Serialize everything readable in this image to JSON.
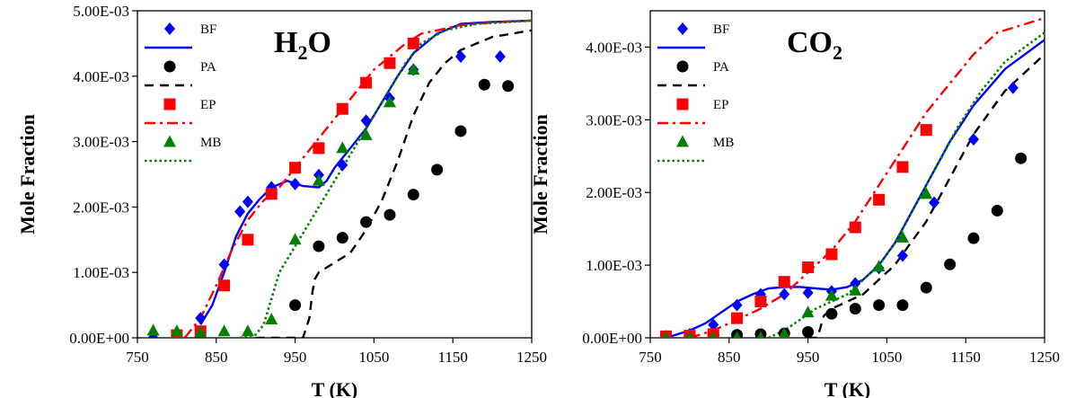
{
  "chart_data": [
    {
      "type": "scatter",
      "species_label": {
        "main": "H",
        "sub": "2",
        "tail": "O"
      },
      "xlabel": "T (K)",
      "ylabel": "Mole Fraction",
      "xlim": [
        750,
        1250
      ],
      "ylim": [
        0,
        0.005
      ],
      "xticks": [
        "750",
        "850",
        "950",
        "1050",
        "1150",
        "1250"
      ],
      "yticks": [
        "0.00E+00",
        "1.00E-03",
        "2.00E-03",
        "3.00E-03",
        "4.00E-03",
        "5.00E-03"
      ],
      "legend_position": "top-left",
      "legend": [
        "BF",
        "PA",
        "EP",
        "MB"
      ],
      "series": [
        {
          "name": "BF",
          "kind": "points",
          "marker": "diamond",
          "color": "#0000ff",
          "x": [
            770,
            800,
            830,
            860,
            880,
            890,
            920,
            950,
            980,
            1010,
            1040,
            1070,
            1100,
            1160,
            1210
          ],
          "y": [
            0.0,
            5e-05,
            0.0003,
            0.00112,
            0.00193,
            0.00208,
            0.0023,
            0.00235,
            0.00249,
            0.00264,
            0.00332,
            0.00366,
            0.0041,
            0.0043,
            0.0043
          ]
        },
        {
          "name": "BF",
          "kind": "line",
          "style": "solid",
          "color": "#0000ff",
          "x": [
            830,
            845,
            860,
            875,
            890,
            905,
            920,
            940,
            960,
            980,
            990,
            1000,
            1020,
            1040,
            1060,
            1080,
            1100,
            1130,
            1160,
            1200,
            1250
          ],
          "y": [
            0.0002,
            0.0005,
            0.001,
            0.00155,
            0.0019,
            0.00212,
            0.0023,
            0.0024,
            0.00232,
            0.0023,
            0.0024,
            0.0026,
            0.0029,
            0.0032,
            0.0036,
            0.004,
            0.00435,
            0.00465,
            0.0048,
            0.00483,
            0.00485
          ]
        },
        {
          "name": "PA",
          "kind": "points",
          "marker": "circle",
          "color": "#000000",
          "x": [
            950,
            980,
            1010,
            1040,
            1070,
            1100,
            1130,
            1160,
            1190,
            1220
          ],
          "y": [
            0.0005,
            0.0014,
            0.00153,
            0.00177,
            0.00188,
            0.00219,
            0.00257,
            0.00316,
            0.00387,
            0.00385
          ]
        },
        {
          "name": "PA",
          "kind": "line",
          "style": "dashed",
          "color": "#000000",
          "x": [
            900,
            960,
            968,
            972,
            975,
            980,
            1000,
            1020,
            1040,
            1060,
            1080,
            1100,
            1120,
            1140,
            1160,
            1200,
            1250
          ],
          "y": [
            0.0,
            0.0,
            0.0003,
            0.0007,
            0.0009,
            0.001,
            0.00115,
            0.0013,
            0.00165,
            0.0021,
            0.0027,
            0.0034,
            0.0039,
            0.0042,
            0.0044,
            0.0046,
            0.0047
          ]
        },
        {
          "name": "EP",
          "kind": "points",
          "marker": "square",
          "color": "#ff0000",
          "x": [
            800,
            830,
            860,
            890,
            920,
            950,
            980,
            1010,
            1040,
            1070,
            1100
          ],
          "y": [
            4e-05,
            0.0001,
            0.0008,
            0.0015,
            0.0022,
            0.0026,
            0.0029,
            0.0035,
            0.0039,
            0.0042,
            0.0045
          ]
        },
        {
          "name": "EP",
          "kind": "line",
          "style": "dash-dot",
          "color": "#ff0000",
          "x": [
            810,
            830,
            850,
            870,
            890,
            910,
            930,
            950,
            970,
            990,
            1010,
            1030,
            1050,
            1070,
            1090,
            1110,
            1130,
            1160,
            1200,
            1250
          ],
          "y": [
            0.0,
            0.0003,
            0.0008,
            0.00135,
            0.0018,
            0.0021,
            0.0023,
            0.0026,
            0.0029,
            0.0032,
            0.0035,
            0.0038,
            0.0041,
            0.0043,
            0.0045,
            0.00465,
            0.0047,
            0.00478,
            0.00482,
            0.00485
          ]
        },
        {
          "name": "MB",
          "kind": "points",
          "marker": "triangle",
          "color": "#008000",
          "x": [
            770,
            800,
            830,
            860,
            890,
            920,
            950,
            980,
            1010,
            1040,
            1070,
            1100
          ],
          "y": [
            0.00011,
            0.0001,
            8e-05,
            0.0001,
            0.0001,
            0.00028,
            0.0015,
            0.0024,
            0.0029,
            0.0031,
            0.0036,
            0.0041
          ]
        },
        {
          "name": "MB",
          "kind": "line",
          "style": "dotted",
          "color": "#008000",
          "x": [
            880,
            900,
            910,
            920,
            930,
            950,
            970,
            990,
            1010,
            1030,
            1050,
            1070,
            1090,
            1110,
            1140,
            1180,
            1250
          ],
          "y": [
            0.0,
            5e-05,
            0.0002,
            0.0006,
            0.001,
            0.0014,
            0.0018,
            0.0022,
            0.0026,
            0.003,
            0.0034,
            0.0038,
            0.0042,
            0.0045,
            0.0047,
            0.0048,
            0.00485
          ]
        }
      ]
    },
    {
      "type": "scatter",
      "species_label": {
        "main": "CO",
        "sub": "2",
        "tail": ""
      },
      "xlabel": "T (K)",
      "ylabel": "Mole Fraction",
      "xlim": [
        750,
        1250
      ],
      "ylim": [
        0,
        0.0045
      ],
      "xticks": [
        "750",
        "850",
        "950",
        "1050",
        "1150",
        "1250"
      ],
      "yticks": [
        "0.00E+00",
        "1.00E-03",
        "2.00E-03",
        "3.00E-03",
        "4.00E-03"
      ],
      "legend_position": "top-left",
      "legend": [
        "BF",
        "PA",
        "EP",
        "MB"
      ],
      "series": [
        {
          "name": "BF",
          "kind": "points",
          "marker": "diamond",
          "color": "#0000ff",
          "x": [
            770,
            800,
            830,
            860,
            890,
            920,
            950,
            980,
            1010,
            1040,
            1070,
            1110,
            1160,
            1210
          ],
          "y": [
            2e-05,
            5e-05,
            0.00018,
            0.00045,
            0.0006,
            0.0006,
            0.00062,
            0.00064,
            0.00075,
            0.00096,
            0.00113,
            0.00186,
            0.00273,
            0.00344
          ]
        },
        {
          "name": "BF",
          "kind": "line",
          "style": "solid",
          "color": "#0000ff",
          "x": [
            770,
            800,
            820,
            840,
            860,
            880,
            900,
            920,
            940,
            960,
            980,
            1000,
            1020,
            1040,
            1060,
            1080,
            1100,
            1130,
            1160,
            1200,
            1250
          ],
          "y": [
            0.0,
            0.0001,
            0.0002,
            0.00035,
            0.0005,
            0.0006,
            0.00068,
            0.0007,
            0.0007,
            0.00068,
            0.00066,
            0.0007,
            0.0008,
            0.001,
            0.0013,
            0.0017,
            0.0021,
            0.0027,
            0.0032,
            0.0037,
            0.0041
          ]
        },
        {
          "name": "PA",
          "kind": "points",
          "marker": "circle",
          "color": "#000000",
          "x": [
            770,
            800,
            830,
            860,
            890,
            920,
            950,
            980,
            1010,
            1040,
            1070,
            1100,
            1130,
            1160,
            1190,
            1220
          ],
          "y": [
            2e-05,
            2e-05,
            3e-05,
            4e-05,
            5e-05,
            6e-05,
            8e-05,
            0.00033,
            0.0004,
            0.00045,
            0.00045,
            0.00069,
            0.00101,
            0.00137,
            0.00175,
            0.00247
          ]
        },
        {
          "name": "PA",
          "kind": "line",
          "style": "dashed",
          "color": "#000000",
          "x": [
            950,
            962,
            970,
            980,
            1000,
            1020,
            1040,
            1060,
            1080,
            1100,
            1120,
            1140,
            1160,
            1180,
            1200,
            1220,
            1250
          ],
          "y": [
            0.0,
            0.0,
            0.0003,
            0.0004,
            0.0005,
            0.0006,
            0.0008,
            0.001,
            0.0013,
            0.0016,
            0.002,
            0.0024,
            0.0028,
            0.0031,
            0.0034,
            0.0036,
            0.0039
          ]
        },
        {
          "name": "EP",
          "kind": "points",
          "marker": "square",
          "color": "#ff0000",
          "x": [
            770,
            800,
            830,
            860,
            890,
            920,
            950,
            980,
            1010,
            1040,
            1070,
            1100
          ],
          "y": [
            2e-05,
            3e-05,
            5e-05,
            0.00027,
            0.0005,
            0.00077,
            0.00097,
            0.00115,
            0.00152,
            0.0019,
            0.00235,
            0.00286
          ]
        },
        {
          "name": "EP",
          "kind": "line",
          "style": "dash-dot",
          "color": "#ff0000",
          "x": [
            800,
            830,
            860,
            890,
            920,
            950,
            980,
            1010,
            1040,
            1070,
            1100,
            1130,
            1160,
            1190,
            1220,
            1250
          ],
          "y": [
            0.0,
            0.0001,
            0.00025,
            0.0004,
            0.0006,
            0.0009,
            0.0012,
            0.0016,
            0.0021,
            0.0026,
            0.0031,
            0.0035,
            0.0039,
            0.0042,
            0.0043,
            0.0044
          ]
        },
        {
          "name": "MB",
          "kind": "points",
          "marker": "triangle",
          "color": "#008000",
          "x": [
            770,
            800,
            830,
            860,
            890,
            920,
            950,
            980,
            1010,
            1040,
            1070,
            1100
          ],
          "y": [
            0.0,
            0.0,
            0.0,
            0.0,
            0.0,
            5e-05,
            0.00035,
            0.00058,
            0.00065,
            0.00098,
            0.00138,
            0.00198
          ]
        },
        {
          "name": "MB",
          "kind": "line",
          "style": "dotted",
          "color": "#008000",
          "x": [
            900,
            920,
            940,
            960,
            980,
            1000,
            1020,
            1040,
            1060,
            1080,
            1100,
            1120,
            1140,
            1170,
            1200,
            1250
          ],
          "y": [
            0.0,
            0.0001,
            0.00025,
            0.0004,
            0.0005,
            0.0006,
            0.0008,
            0.001,
            0.0013,
            0.0017,
            0.0021,
            0.0025,
            0.0029,
            0.0034,
            0.0038,
            0.0042
          ]
        }
      ]
    }
  ]
}
